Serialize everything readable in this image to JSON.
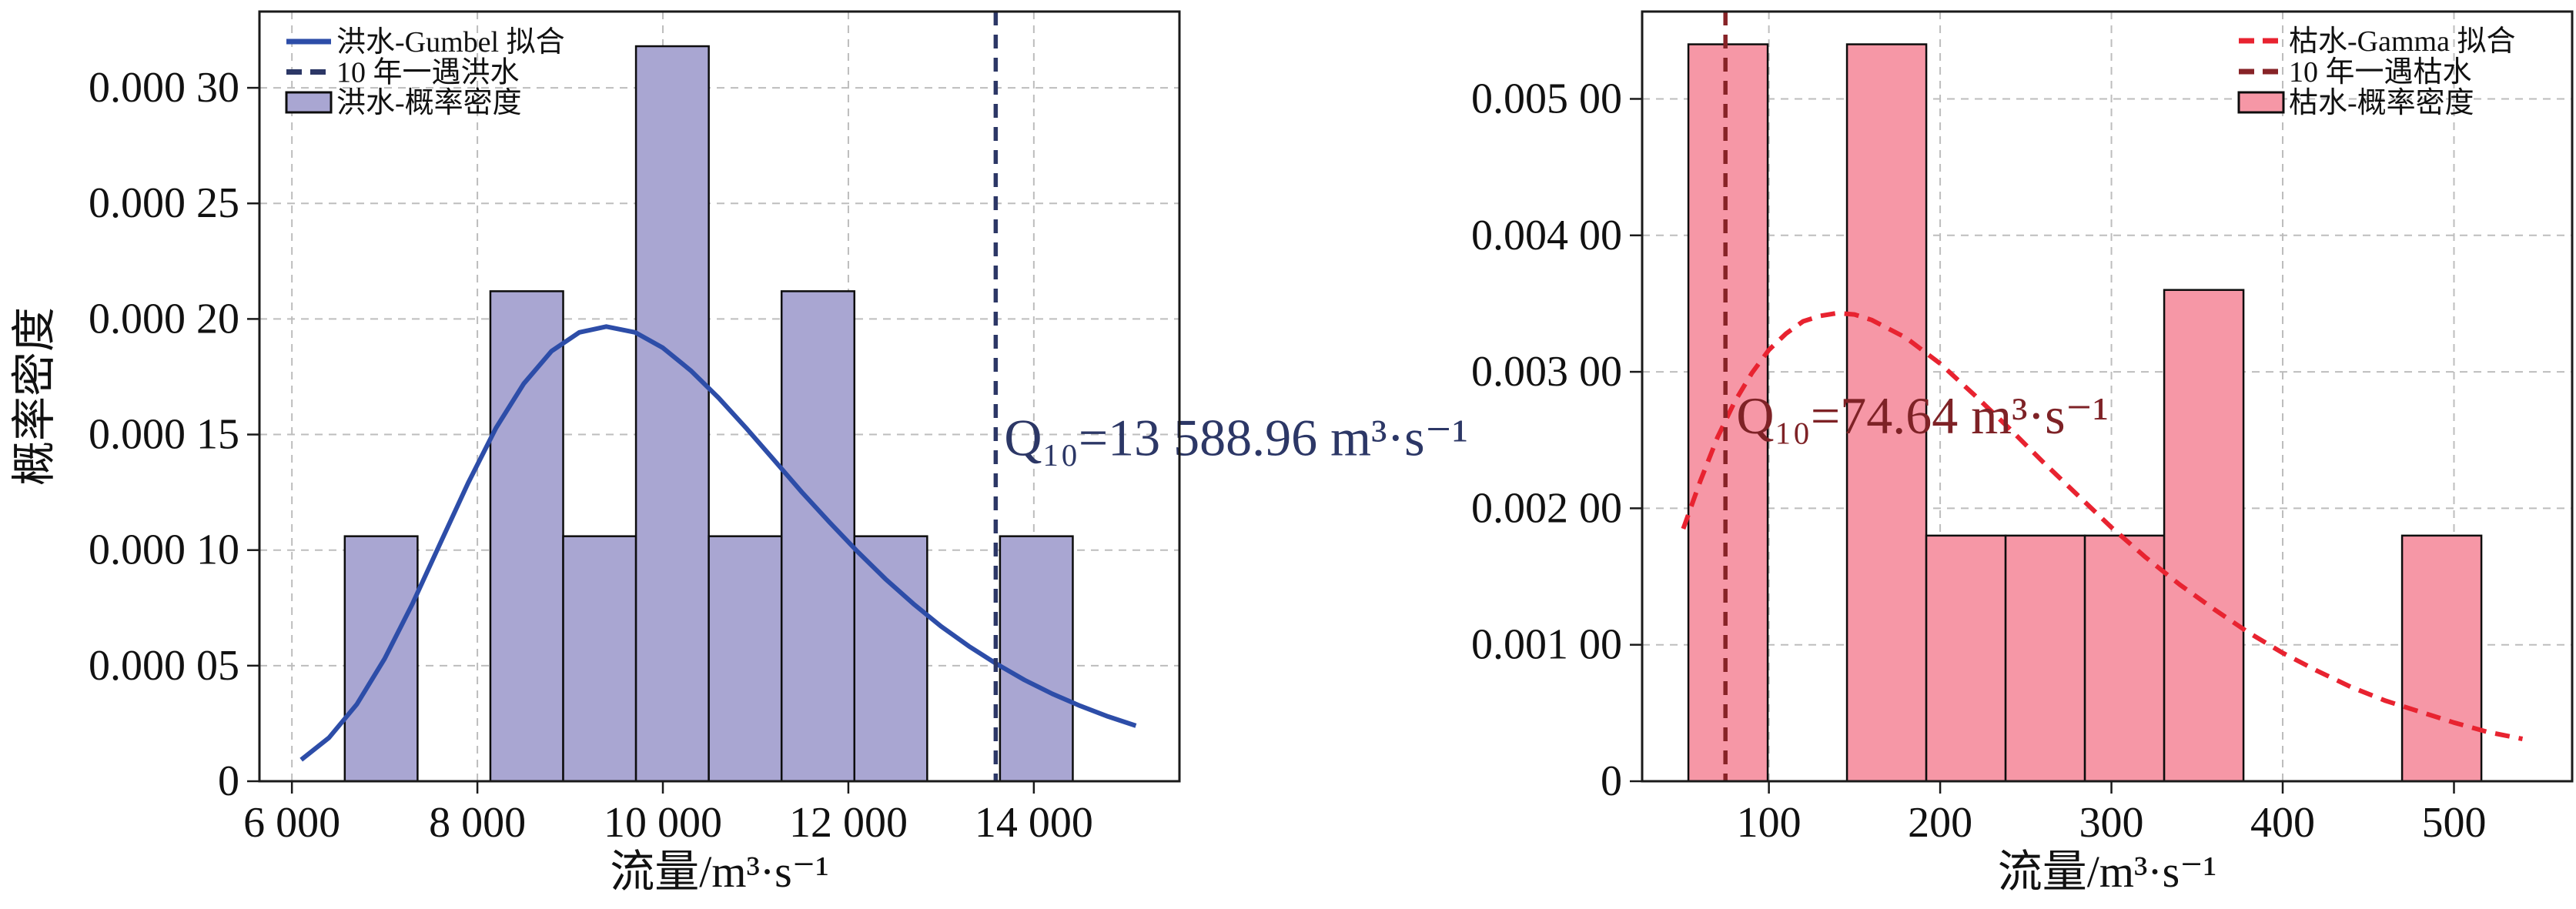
{
  "figure": {
    "background": "#ffffff",
    "grid_color": "#bdbdbd",
    "spine_color": "#1a1a1a",
    "text_color": "#111111"
  },
  "chart_data": [
    {
      "id": "flood",
      "type": "histogram+line",
      "xlabel": "流量/m³·s⁻¹",
      "ylabel": "概率密度",
      "xlim": [
        5650,
        15570
      ],
      "ylim": [
        0,
        0.000333
      ],
      "grid": true,
      "xticks": [
        {
          "v": 6000,
          "label": "6 000"
        },
        {
          "v": 8000,
          "label": "8 000"
        },
        {
          "v": 10000,
          "label": "10 000"
        },
        {
          "v": 12000,
          "label": "12 000"
        },
        {
          "v": 14000,
          "label": "14 000"
        }
      ],
      "yticks": [
        {
          "v": 0,
          "label": "0"
        },
        {
          "v": 5e-05,
          "label": "0.000 05"
        },
        {
          "v": 0.0001,
          "label": "0.000 10"
        },
        {
          "v": 0.00015,
          "label": "0.000 15"
        },
        {
          "v": 0.0002,
          "label": "0.000 20"
        },
        {
          "v": 0.00025,
          "label": "0.000 25"
        },
        {
          "v": 0.0003,
          "label": "0.000 30"
        }
      ],
      "legend": {
        "position": "upper-left",
        "items": [
          {
            "label": "洪水-Gumbel 拟合",
            "swatch": "line",
            "color": "#2d4da8",
            "dash": "solid"
          },
          {
            "label": "10 年一遇洪水",
            "swatch": "line",
            "color": "#2c3766",
            "dash": "dashed"
          },
          {
            "label": "洪水-概率密度",
            "swatch": "patch",
            "fill": "#a9a6d2",
            "edge": "#0d0d0d"
          }
        ]
      },
      "histogram": {
        "fill": "#a9a6d2",
        "edge": "#0d0d0d",
        "bin_width": 785,
        "bins": [
          {
            "x0": 6570,
            "x1": 7355,
            "count": 1,
            "density": 0.000106
          },
          {
            "x0": 7355,
            "x1": 8140,
            "count": 0,
            "density": 0
          },
          {
            "x0": 8140,
            "x1": 8925,
            "count": 2,
            "density": 0.000212
          },
          {
            "x0": 8925,
            "x1": 9710,
            "count": 1,
            "density": 0.000106
          },
          {
            "x0": 9710,
            "x1": 10495,
            "count": 3,
            "density": 0.000318
          },
          {
            "x0": 10495,
            "x1": 11280,
            "count": 1,
            "density": 0.000106
          },
          {
            "x0": 11280,
            "x1": 12065,
            "count": 2,
            "density": 0.000212
          },
          {
            "x0": 12065,
            "x1": 12850,
            "count": 1,
            "density": 0.000106
          },
          {
            "x0": 12850,
            "x1": 13635,
            "count": 0,
            "density": 0
          },
          {
            "x0": 13635,
            "x1": 14420,
            "count": 1,
            "density": 0.000106
          }
        ]
      },
      "fit_curve": {
        "name": "Gumbel",
        "color": "#2d4da8",
        "dash": "solid",
        "points": [
          [
            6100,
            9.3e-06
          ],
          [
            6400,
            1.88e-05
          ],
          [
            6700,
            3.33e-05
          ],
          [
            7000,
            5.3e-05
          ],
          [
            7300,
            7.68e-05
          ],
          [
            7600,
            0.000103
          ],
          [
            7900,
            0.000129
          ],
          [
            8200,
            0.0001528
          ],
          [
            8500,
            0.000172
          ],
          [
            8800,
            0.0001861
          ],
          [
            9100,
            0.0001942
          ],
          [
            9390,
            0.0001967
          ],
          [
            9700,
            0.0001942
          ],
          [
            10000,
            0.0001875
          ],
          [
            10300,
            0.0001777
          ],
          [
            10600,
            0.0001659
          ],
          [
            10900,
            0.0001527
          ],
          [
            11200,
            0.0001389
          ],
          [
            11500,
            0.000125
          ],
          [
            11800,
            0.0001119
          ],
          [
            12100,
            9.93e-05
          ],
          [
            12400,
            8.75e-05
          ],
          [
            12700,
            7.68e-05
          ],
          [
            13000,
            6.7e-05
          ],
          [
            13300,
            5.84e-05
          ],
          [
            13600,
            5.07e-05
          ],
          [
            13900,
            4.38e-05
          ],
          [
            14200,
            3.78e-05
          ],
          [
            14500,
            3.26e-05
          ],
          [
            14800,
            2.8e-05
          ],
          [
            15100,
            2.4e-05
          ]
        ]
      },
      "return_period_line": {
        "x": 13588.96,
        "color": "#2c3766",
        "dash": "dashed"
      },
      "annotation": {
        "text": "Q₁₀=13 588.96 m³·s⁻¹",
        "x": 13680,
        "y": 0.000141,
        "color": "#2c3766"
      }
    },
    {
      "id": "drought",
      "type": "histogram+line",
      "xlabel": "流量/m³·s⁻¹",
      "ylabel": "",
      "xlim": [
        26,
        569
      ],
      "ylim": [
        0,
        0.00564
      ],
      "grid": true,
      "xticks": [
        {
          "v": 100,
          "label": "100"
        },
        {
          "v": 200,
          "label": "200"
        },
        {
          "v": 300,
          "label": "300"
        },
        {
          "v": 400,
          "label": "400"
        },
        {
          "v": 500,
          "label": "500"
        }
      ],
      "yticks": [
        {
          "v": 0,
          "label": "0"
        },
        {
          "v": 0.001,
          "label": "0.001 00"
        },
        {
          "v": 0.002,
          "label": "0.002 00"
        },
        {
          "v": 0.003,
          "label": "0.003 00"
        },
        {
          "v": 0.004,
          "label": "0.004 00"
        },
        {
          "v": 0.005,
          "label": "0.005 00"
        }
      ],
      "legend": {
        "position": "upper-right",
        "items": [
          {
            "label": "枯水-Gamma 拟合",
            "swatch": "line",
            "color": "#e82330",
            "dash": "dashed"
          },
          {
            "label": "10 年一遇枯水",
            "swatch": "line",
            "color": "#872327",
            "dash": "dashed"
          },
          {
            "label": "枯水-概率密度",
            "swatch": "patch",
            "fill": "#f697a6",
            "edge": "#0d0d0d"
          }
        ]
      },
      "histogram": {
        "fill": "#f697a6",
        "edge": "#0d0d0d",
        "bin_width": 46.3,
        "bins": [
          {
            "x0": 53,
            "x1": 99.3,
            "count": 3,
            "density": 0.0054
          },
          {
            "x0": 99.3,
            "x1": 145.6,
            "count": 0,
            "density": 0
          },
          {
            "x0": 145.6,
            "x1": 191.9,
            "count": 3,
            "density": 0.0054
          },
          {
            "x0": 191.9,
            "x1": 238.2,
            "count": 1,
            "density": 0.0018
          },
          {
            "x0": 238.2,
            "x1": 284.5,
            "count": 1,
            "density": 0.0018
          },
          {
            "x0": 284.5,
            "x1": 330.8,
            "count": 1,
            "density": 0.0018
          },
          {
            "x0": 330.8,
            "x1": 377.1,
            "count": 2,
            "density": 0.0036
          },
          {
            "x0": 377.1,
            "x1": 423.4,
            "count": 0,
            "density": 0
          },
          {
            "x0": 423.4,
            "x1": 469.7,
            "count": 0,
            "density": 0
          },
          {
            "x0": 469.7,
            "x1": 516,
            "count": 1,
            "density": 0.0018
          }
        ]
      },
      "fit_curve": {
        "name": "Gamma",
        "color": "#e82330",
        "dash": "dashed",
        "points": [
          [
            50,
            0.00185
          ],
          [
            60,
            0.0022
          ],
          [
            70,
            0.00252
          ],
          [
            80,
            0.00278
          ],
          [
            90,
            0.00299
          ],
          [
            100,
            0.00316
          ],
          [
            110,
            0.00328
          ],
          [
            120,
            0.00337
          ],
          [
            130,
            0.00341
          ],
          [
            140,
            0.00343
          ],
          [
            150,
            0.00342
          ],
          [
            160,
            0.00338
          ],
          [
            180,
            0.00325
          ],
          [
            200,
            0.00306
          ],
          [
            220,
            0.00283
          ],
          [
            240,
            0.00259
          ],
          [
            260,
            0.00234
          ],
          [
            280,
            0.0021
          ],
          [
            300,
            0.00186
          ],
          [
            320,
            0.00164
          ],
          [
            340,
            0.00144
          ],
          [
            360,
            0.00126
          ],
          [
            380,
            0.00109
          ],
          [
            400,
            0.00094
          ],
          [
            420,
            0.00081
          ],
          [
            440,
            0.00069
          ],
          [
            460,
            0.00059
          ],
          [
            480,
            0.00051
          ],
          [
            500,
            0.00043
          ],
          [
            520,
            0.00036
          ],
          [
            540,
            0.00031
          ]
        ]
      },
      "return_period_line": {
        "x": 74.64,
        "color": "#872327",
        "dash": "dashed"
      },
      "annotation": {
        "text": "Q₁₀=74.64 m³·s⁻¹",
        "x": 81,
        "y": 0.00255,
        "color": "#7e2226"
      }
    }
  ]
}
